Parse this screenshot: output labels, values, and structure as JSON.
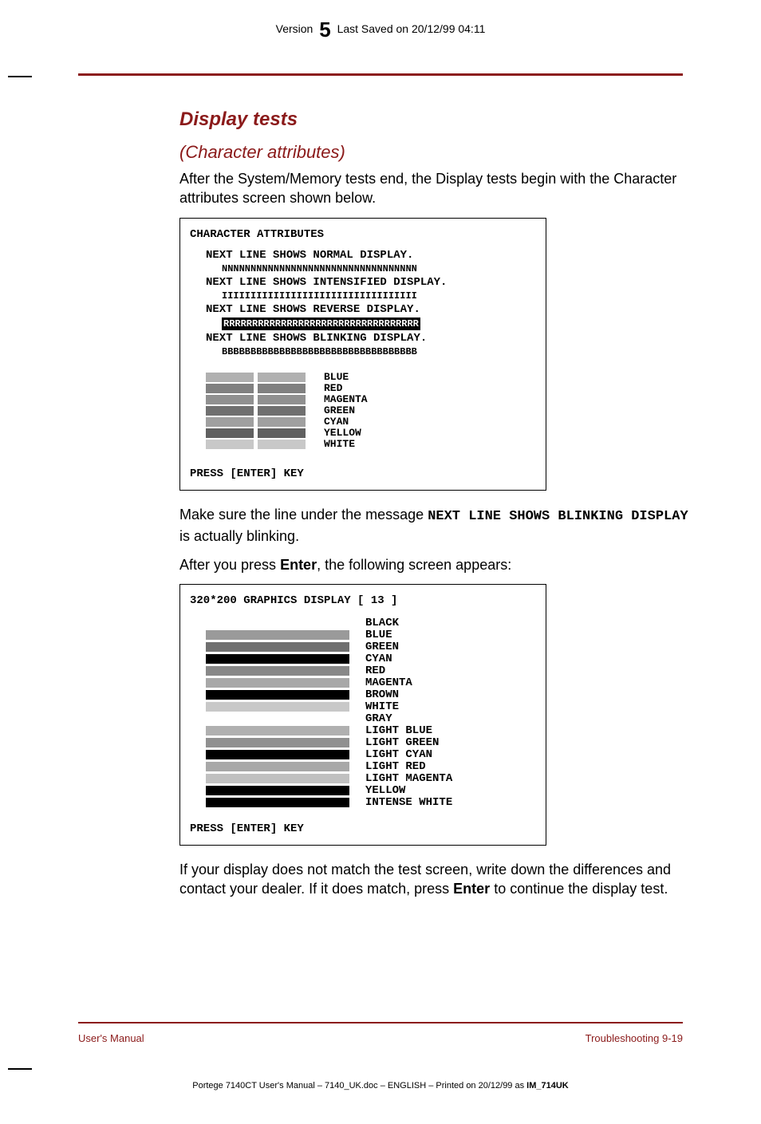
{
  "header": {
    "version_prefix": "Version",
    "version_number": "5",
    "saved": "Last Saved on 20/12/99 04:11"
  },
  "headings": {
    "title": "Display tests",
    "subtitle": "(Character attributes)"
  },
  "paragraphs": {
    "intro": "After the System/Memory tests end, the Display tests begin with the Character attributes screen shown below.",
    "blinking_pre": "Make sure the line under the message ",
    "blinking_mono": "NEXT LINE SHOWS BLINKING DISPLAY",
    "blinking_post": " is actually blinking.",
    "after_enter_pre": "After you press ",
    "after_enter_key": "Enter",
    "after_enter_post": ", the following screen appears:",
    "closing_pre": "If your display does not match the test screen, write down the differences and contact your dealer. If it does match, press ",
    "closing_key": "Enter",
    "closing_post": " to continue the display test."
  },
  "screen1": {
    "title": "CHARACTER ATTRIBUTES",
    "lines": {
      "l1": "NEXT LINE SHOWS NORMAL DISPLAY.",
      "n": "NNNNNNNNNNNNNNNNNNNNNNNNNNNNNNNNNN",
      "l2": "NEXT LINE SHOWS INTENSIFIED DISPLAY.",
      "i": "IIIIIIIIIIIIIIIIIIIIIIIIIIIIIIIIII",
      "l3": "NEXT LINE SHOWS REVERSE DISPLAY.",
      "r": "RRRRRRRRRRRRRRRRRRRRRRRRRRRRRRRRRR",
      "l4": "NEXT LINE SHOWS BLINKING DISPLAY.",
      "b": "BBBBBBBBBBBBBBBBBBBBBBBBBBBBBBBBBB"
    },
    "colors": [
      {
        "label": "BLUE",
        "c": "#b0b0b0"
      },
      {
        "label": "RED",
        "c": "#808080"
      },
      {
        "label": "MAGENTA",
        "c": "#909090"
      },
      {
        "label": "GREEN",
        "c": "#707070"
      },
      {
        "label": "CYAN",
        "c": "#a0a0a0"
      },
      {
        "label": "YELLOW",
        "c": "#606060"
      },
      {
        "label": "WHITE",
        "c": "#c8c8c8"
      }
    ],
    "press": "PRESS [ENTER] KEY"
  },
  "screen2": {
    "title": "320*200 GRAPHICS DISPLAY [ 13 ]",
    "colors": [
      {
        "label": "BLACK",
        "c": "#ffffff"
      },
      {
        "label": "BLUE",
        "c": "#9a9a9a"
      },
      {
        "label": "GREEN",
        "c": "#707070"
      },
      {
        "label": "CYAN",
        "c": "#000000"
      },
      {
        "label": "RED",
        "c": "#888888"
      },
      {
        "label": "MAGENTA",
        "c": "#a8a8a8"
      },
      {
        "label": "BROWN",
        "c": "#000000"
      },
      {
        "label": "WHITE",
        "c": "#c8c8c8"
      },
      {
        "label": "GRAY",
        "c": "#ffffff"
      },
      {
        "label": "LIGHT BLUE",
        "c": "#b0b0b0"
      },
      {
        "label": "LIGHT GREEN",
        "c": "#909090"
      },
      {
        "label": "LIGHT CYAN",
        "c": "#000000"
      },
      {
        "label": "LIGHT RED",
        "c": "#a8a8a8"
      },
      {
        "label": "LIGHT MAGENTA",
        "c": "#c0c0c0"
      },
      {
        "label": "YELLOW",
        "c": "#000000"
      },
      {
        "label": "INTENSE WHITE",
        "c": "#000000"
      }
    ],
    "press": "PRESS [ENTER] KEY"
  },
  "footer": {
    "left": "User's Manual",
    "right": "Troubleshooting  9-19",
    "bottom_pre": "Portege 7140CT User's Manual  – 7140_UK.doc – ENGLISH – Printed on 20/12/99 as ",
    "bottom_bold": "IM_714UK"
  },
  "styling": {
    "content_width": 640,
    "screen_box_width": 460,
    "accent_color": "#8b1a1a",
    "body_font": "Arial",
    "mono_font": "Courier New"
  }
}
